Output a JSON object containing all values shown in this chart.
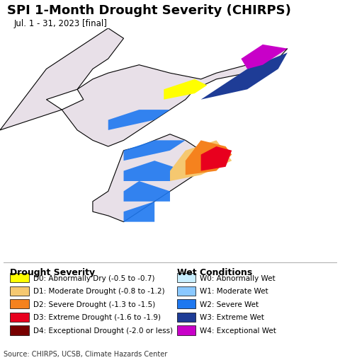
{
  "title": "SPI 1-Month Drought Severity (CHIRPS)",
  "subtitle": "Jul. 1 - 31, 2023 [final]",
  "source_text": "Source: CHIRPS, UCSB, Climate Hazards Center",
  "background_ocean": "#aaddee",
  "background_land": "#e8e0e8",
  "drought_legend": {
    "title": "Drought Severity",
    "entries": [
      {
        "code": "D0",
        "label": "D0: Abnormally Dry (-0.5 to -0.7)",
        "color": "#ffff00"
      },
      {
        "code": "D1",
        "label": "D1: Moderate Drought (-0.8 to -1.2)",
        "color": "#f5c870"
      },
      {
        "code": "D2",
        "label": "D2: Severe Drought (-1.3 to -1.5)",
        "color": "#f5821e"
      },
      {
        "code": "D3",
        "label": "D3: Extreme Drought (-1.6 to -1.9)",
        "color": "#e8001e"
      },
      {
        "code": "D4",
        "label": "D4: Exceptional Drought (-2.0 or less)",
        "color": "#780000"
      }
    ]
  },
  "wet_legend": {
    "title": "Wet Conditions",
    "entries": [
      {
        "code": "W0",
        "label": "W0: Abnormally Wet",
        "color": "#c8eeff"
      },
      {
        "code": "W1",
        "label": "W1: Moderate Wet",
        "color": "#8ac8ff"
      },
      {
        "code": "W2",
        "label": "W2: Severe Wet",
        "color": "#1e78f0"
      },
      {
        "code": "W3",
        "label": "W3: Extreme Wet",
        "color": "#1e3c96"
      },
      {
        "code": "W4",
        "label": "W4: Exceptional Wet",
        "color": "#c800c8"
      }
    ]
  },
  "title_fontsize": 13,
  "subtitle_fontsize": 8.5,
  "legend_title_fontsize": 9,
  "legend_entry_fontsize": 7.5,
  "source_fontsize": 7,
  "fig_width": 4.8,
  "fig_height": 5.1,
  "map_extent": [
    122.5,
    133.5,
    32.5,
    44.0
  ]
}
